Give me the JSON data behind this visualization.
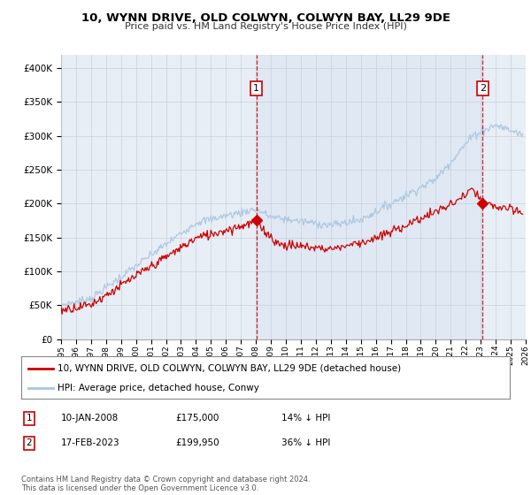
{
  "title": "10, WYNN DRIVE, OLD COLWYN, COLWYN BAY, LL29 9DE",
  "subtitle": "Price paid vs. HM Land Registry's House Price Index (HPI)",
  "hpi_label": "HPI: Average price, detached house, Conwy",
  "property_label": "10, WYNN DRIVE, OLD COLWYN, COLWYN BAY, LL29 9DE (detached house)",
  "hpi_color": "#a8c4e0",
  "property_color": "#cc0000",
  "background_color": "#ffffff",
  "plot_bg_color": "#e8eef5",
  "grid_color": "#c8d0dc",
  "annotation1": {
    "num": "1",
    "date": "10-JAN-2008",
    "price": "£175,000",
    "hpi": "14% ↓ HPI",
    "x_year": 2008.03
  },
  "annotation2": {
    "num": "2",
    "date": "17-FEB-2023",
    "price": "£199,950",
    "hpi": "36% ↓ HPI",
    "x_year": 2023.12
  },
  "footer": "Contains HM Land Registry data © Crown copyright and database right 2024.\nThis data is licensed under the Open Government Licence v3.0.",
  "ylim": [
    0,
    420000
  ],
  "yticks": [
    0,
    50000,
    100000,
    150000,
    200000,
    250000,
    300000,
    350000,
    400000
  ],
  "ytick_labels": [
    "£0",
    "£50K",
    "£100K",
    "£150K",
    "£200K",
    "£250K",
    "£300K",
    "£350K",
    "£400K"
  ],
  "xmin": 1995,
  "xmax": 2026,
  "sale1_x": 2008.03,
  "sale1_y": 175000,
  "sale2_x": 2023.12,
  "sale2_y": 199950
}
